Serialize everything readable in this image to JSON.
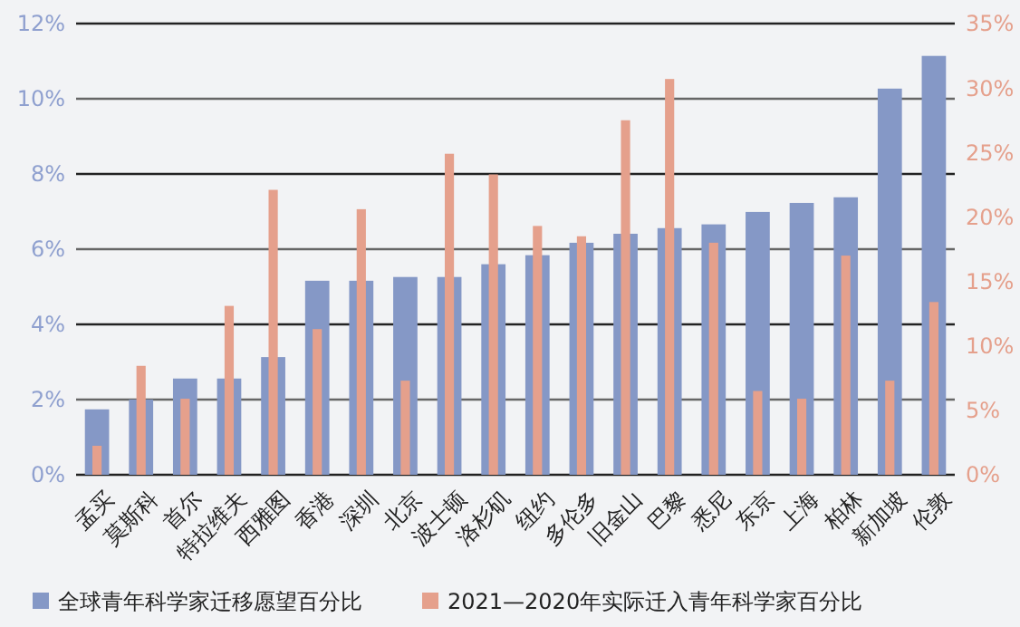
{
  "chart_data": {
    "type": "bar",
    "categories": [
      "孟买",
      "莫斯科",
      "首尔",
      "特拉维夫",
      "西雅图",
      "香港",
      "深圳",
      "北京",
      "波士顿",
      "洛杉矶",
      "纽约",
      "多伦多",
      "旧金山",
      "巴黎",
      "悉尼",
      "东京",
      "上海",
      "柏林",
      "新加坡",
      "伦敦"
    ],
    "series": [
      {
        "name": "全球青年科学家迁移愿望百分比",
        "color": "#8598c6",
        "values": [
          1.74,
          2.0,
          2.56,
          2.56,
          3.13,
          5.16,
          5.16,
          5.26,
          5.26,
          5.6,
          5.84,
          6.17,
          6.41,
          6.56,
          6.66,
          6.99,
          7.23,
          7.38,
          10.27,
          11.14
        ]
      },
      {
        "name": "2021—2020年实际迁入青年科学家百分比",
        "color": "#e5a08c",
        "axis": "y2",
        "values": [
          2.25,
          8.45,
          5.9,
          13.1,
          22.1,
          11.3,
          20.6,
          7.3,
          24.9,
          23.3,
          19.3,
          18.5,
          27.5,
          30.7,
          18.0,
          6.5,
          5.9,
          17.0,
          7.3,
          13.4
        ]
      }
    ],
    "ylim": [
      0,
      12
    ],
    "yticks": [
      {
        "value": 0,
        "label": "0%"
      },
      {
        "value": 2,
        "label": "2%"
      },
      {
        "value": 4,
        "label": "4%"
      },
      {
        "value": 6,
        "label": "6%"
      },
      {
        "value": 8,
        "label": "8%"
      },
      {
        "value": 10,
        "label": "10%"
      },
      {
        "value": 12,
        "label": "12%"
      }
    ],
    "y2lim": [
      0,
      35
    ],
    "y2ticks": [
      {
        "value": 0,
        "label": "0%"
      },
      {
        "value": 5,
        "label": "5%"
      },
      {
        "value": 10,
        "label": "10%"
      },
      {
        "value": 15,
        "label": "15%"
      },
      {
        "value": 20,
        "label": "20%"
      },
      {
        "value": 25,
        "label": "25%"
      },
      {
        "value": 30,
        "label": "30%"
      },
      {
        "value": 35,
        "label": "35%"
      }
    ],
    "grid": "y",
    "legend": "bottom"
  }
}
